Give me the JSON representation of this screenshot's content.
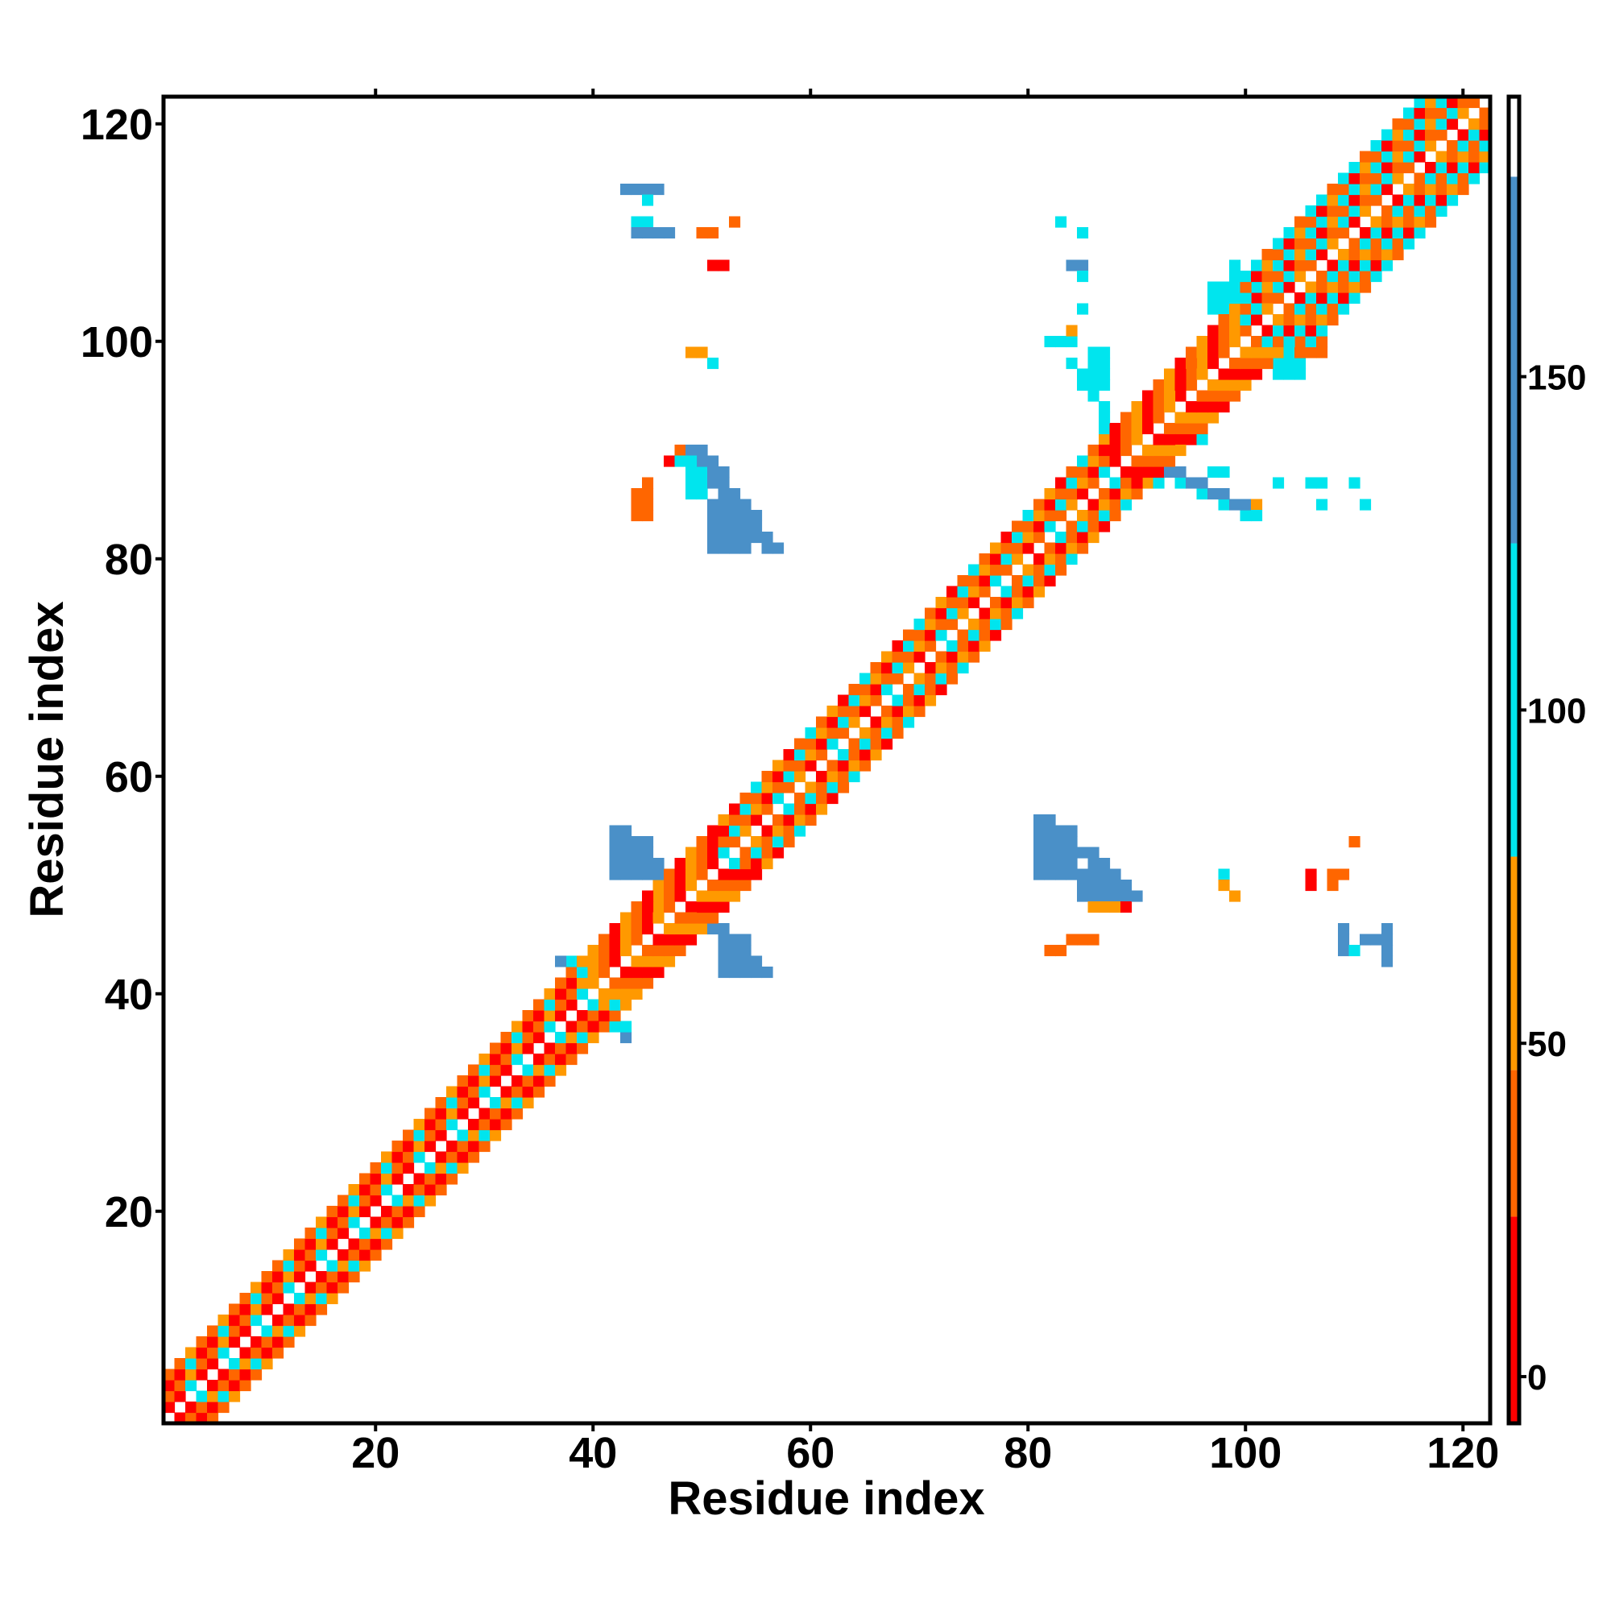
{
  "chart_data": {
    "type": "heatmap",
    "title": "",
    "xlabel": "Residue index",
    "ylabel": "Residue index",
    "xlim": [
      0.5,
      122.5
    ],
    "ylim": [
      0.5,
      122.5
    ],
    "xticks": [
      20,
      40,
      60,
      80,
      100,
      120
    ],
    "yticks": [
      20,
      40,
      60,
      80,
      100,
      120
    ],
    "colorbar": {
      "ticks": [
        0,
        50,
        100,
        150
      ],
      "range": [
        -7,
        192
      ],
      "bands": [
        {
          "from": -7,
          "to": 24,
          "color": "#ff0000"
        },
        {
          "from": 24,
          "to": 46,
          "color": "#ff6600"
        },
        {
          "from": 46,
          "to": 78,
          "color": "#ff9900"
        },
        {
          "from": 78,
          "to": 125,
          "color": "#00e5ee"
        },
        {
          "from": 125,
          "to": 180,
          "color": "#4a90c8"
        },
        {
          "from": 180,
          "to": 192,
          "color": "#ffffff"
        }
      ]
    },
    "classes": {
      "r": {
        "color": "#ff0000",
        "value": 10
      },
      "o": {
        "color": "#ff6600",
        "value": 35
      },
      "y": {
        "color": "#ff9900",
        "value": 60
      },
      "c": {
        "color": "#00e5ee",
        "value": 100
      },
      "b": {
        "color": "#4a90c8",
        "value": 150
      }
    },
    "diagonal_bands": [
      {
        "from": 1,
        "to": 40,
        "pattern": [
          "y",
          "r",
          "o",
          "c",
          "o",
          "r"
        ],
        "width": 4
      },
      {
        "from": 40,
        "to": 52,
        "pattern": [
          "r",
          "o",
          "y"
        ],
        "width": 4
      },
      {
        "from": 52,
        "to": 88,
        "pattern": [
          "o",
          "y",
          "c",
          "r",
          "o"
        ],
        "width": 4
      },
      {
        "from": 88,
        "to": 100,
        "pattern": [
          "y",
          "o",
          "r"
        ],
        "width": 4
      },
      {
        "from": 100,
        "to": 122,
        "pattern": [
          "o",
          "r",
          "c",
          "y",
          "c",
          "o"
        ],
        "width": 6
      }
    ],
    "blocks": [
      {
        "x": [
          42,
          46
        ],
        "y": [
          51,
          55
        ],
        "cls": "b"
      },
      {
        "x": [
          46,
          50
        ],
        "y": [
          48,
          52
        ],
        "cls": "b"
      },
      {
        "x": [
          50,
          52
        ],
        "y": [
          46,
          50
        ],
        "cls": "c"
      },
      {
        "x": [
          52,
          55
        ],
        "y": [
          42,
          46
        ],
        "cls": "b"
      },
      {
        "x": [
          38,
          41
        ],
        "y": [
          38,
          44
        ],
        "cls": "c"
      },
      {
        "x": [
          37,
          38
        ],
        "y": [
          43,
          44
        ],
        "cls": "b"
      },
      {
        "x": [
          43,
          44
        ],
        "y": [
          36,
          37
        ],
        "cls": "b"
      },
      {
        "x": [
          87,
          89
        ],
        "y": [
          91,
          93
        ],
        "cls": "c"
      },
      {
        "x": [
          91,
          93
        ],
        "y": [
          87,
          89
        ],
        "cls": "c"
      },
      {
        "x": [
          86,
          88
        ],
        "y": [
          96,
          100
        ],
        "cls": "c"
      },
      {
        "x": [
          94,
          97
        ],
        "y": [
          91,
          93
        ],
        "cls": "c"
      },
      {
        "x": [
          49,
          51
        ],
        "y": [
          86,
          89
        ],
        "cls": "c"
      },
      {
        "x": [
          51,
          55
        ],
        "y": [
          81,
          86
        ],
        "cls": "b"
      },
      {
        "x": [
          81,
          85
        ],
        "y": [
          51,
          56
        ],
        "cls": "b"
      },
      {
        "x": [
          85,
          89
        ],
        "y": [
          49,
          52
        ],
        "cls": "b"
      },
      {
        "x": [
          89,
          90
        ],
        "y": [
          49,
          50
        ],
        "cls": "c"
      },
      {
        "x": [
          43,
          47
        ],
        "y": [
          114,
          115
        ],
        "cls": "b"
      },
      {
        "x": [
          44,
          46
        ],
        "y": [
          111,
          112
        ],
        "cls": "c"
      },
      {
        "x": [
          44,
          48
        ],
        "y": [
          110,
          111
        ],
        "cls": "b"
      },
      {
        "x": [
          45,
          46
        ],
        "y": [
          113,
          114
        ],
        "cls": "c"
      },
      {
        "x": [
          50,
          52
        ],
        "y": [
          110,
          111
        ],
        "cls": "o"
      },
      {
        "x": [
          53,
          54
        ],
        "y": [
          111,
          112
        ],
        "cls": "o"
      },
      {
        "x": [
          51,
          53
        ],
        "y": [
          107,
          108
        ],
        "cls": "r"
      },
      {
        "x": [
          49,
          51
        ],
        "y": [
          99,
          100
        ],
        "cls": "y"
      },
      {
        "x": [
          51,
          52
        ],
        "y": [
          98,
          99
        ],
        "cls": "c"
      },
      {
        "x": [
          44,
          46
        ],
        "y": [
          84,
          87
        ],
        "cls": "o"
      },
      {
        "x": [
          45,
          46
        ],
        "y": [
          87,
          88
        ],
        "cls": "o"
      },
      {
        "x": [
          47,
          48
        ],
        "y": [
          89,
          90
        ],
        "cls": "r"
      },
      {
        "x": [
          48,
          49
        ],
        "y": [
          90,
          91
        ],
        "cls": "o"
      },
      {
        "x": [
          82,
          84
        ],
        "y": [
          44,
          45
        ],
        "cls": "o"
      },
      {
        "x": [
          84,
          87
        ],
        "y": [
          45,
          46
        ],
        "cls": "o"
      },
      {
        "x": [
          86,
          89
        ],
        "y": [
          48,
          49
        ],
        "cls": "y"
      },
      {
        "x": [
          89,
          90
        ],
        "y": [
          48,
          49
        ],
        "cls": "r"
      },
      {
        "x": [
          90,
          91
        ],
        "y": [
          49,
          50
        ],
        "cls": "o"
      },
      {
        "x": [
          98,
          99
        ],
        "y": [
          51,
          52
        ],
        "cls": "c"
      },
      {
        "x": [
          98,
          99
        ],
        "y": [
          50,
          51
        ],
        "cls": "y"
      },
      {
        "x": [
          99,
          100
        ],
        "y": [
          49,
          50
        ],
        "cls": "y"
      },
      {
        "x": [
          106,
          107
        ],
        "y": [
          50,
          52
        ],
        "cls": "r"
      },
      {
        "x": [
          108,
          110
        ],
        "y": [
          51,
          52
        ],
        "cls": "o"
      },
      {
        "x": [
          108,
          109
        ],
        "y": [
          50,
          51
        ],
        "cls": "o"
      },
      {
        "x": [
          110,
          111
        ],
        "y": [
          54,
          55
        ],
        "cls": "o"
      },
      {
        "x": [
          109,
          110
        ],
        "y": [
          44,
          47
        ],
        "cls": "b"
      },
      {
        "x": [
          110,
          111
        ],
        "y": [
          44,
          45
        ],
        "cls": "c"
      },
      {
        "x": [
          111,
          112
        ],
        "y": [
          45,
          46
        ],
        "cls": "b"
      },
      {
        "x": [
          113,
          114
        ],
        "y": [
          43,
          47
        ],
        "cls": "b"
      },
      {
        "x": [
          112,
          113
        ],
        "y": [
          45,
          46
        ],
        "cls": "b"
      },
      {
        "x": [
          83,
          84
        ],
        "y": [
          111,
          112
        ],
        "cls": "c"
      },
      {
        "x": [
          85,
          86
        ],
        "y": [
          110,
          111
        ],
        "cls": "c"
      },
      {
        "x": [
          84,
          86
        ],
        "y": [
          107,
          108
        ],
        "cls": "b"
      },
      {
        "x": [
          85,
          86
        ],
        "y": [
          106,
          107
        ],
        "cls": "c"
      },
      {
        "x": [
          85,
          86
        ],
        "y": [
          103,
          104
        ],
        "cls": "c"
      },
      {
        "x": [
          82,
          85
        ],
        "y": [
          100,
          101
        ],
        "cls": "c"
      },
      {
        "x": [
          84,
          85
        ],
        "y": [
          101,
          102
        ],
        "cls": "y"
      },
      {
        "x": [
          97,
          99
        ],
        "y": [
          88,
          89
        ],
        "cls": "c"
      },
      {
        "x": [
          100,
          101
        ],
        "y": [
          84,
          86
        ],
        "cls": "c"
      },
      {
        "x": [
          101,
          102
        ],
        "y": [
          85,
          86
        ],
        "cls": "y"
      },
      {
        "x": [
          103,
          104
        ],
        "y": [
          87,
          88
        ],
        "cls": "c"
      },
      {
        "x": [
          106,
          108
        ],
        "y": [
          87,
          88
        ],
        "cls": "c"
      },
      {
        "x": [
          107,
          108
        ],
        "y": [
          85,
          86
        ],
        "cls": "c"
      },
      {
        "x": [
          110,
          111
        ],
        "y": [
          87,
          88
        ],
        "cls": "c"
      },
      {
        "x": [
          111,
          112
        ],
        "y": [
          85,
          86
        ],
        "cls": "c"
      },
      {
        "x": [
          103,
          106
        ],
        "y": [
          97,
          100
        ],
        "cls": "c"
      },
      {
        "x": [
          97,
          100
        ],
        "y": [
          103,
          106
        ],
        "cls": "c"
      },
      {
        "x": [
          99,
          100
        ],
        "y": [
          106,
          108
        ],
        "cls": "c"
      },
      {
        "x": [
          105,
          108
        ],
        "y": [
          99,
          101
        ],
        "cls": "o"
      },
      {
        "x": [
          101,
          103
        ],
        "y": [
          104,
          106
        ],
        "cls": "o"
      }
    ],
    "diagonal_bars": [
      {
        "start": [
          49,
          90
        ],
        "end": [
          56,
          81
        ],
        "cls": "b",
        "thickness": 2
      },
      {
        "start": [
          48,
          89
        ],
        "end": [
          50,
          88
        ],
        "cls": "c",
        "thickness": 1
      },
      {
        "start": [
          81,
          56
        ],
        "end": [
          89,
          49
        ],
        "cls": "b",
        "thickness": 2
      },
      {
        "start": [
          42,
          55
        ],
        "end": [
          55,
          42
        ],
        "cls": "b",
        "thickness": 2
      },
      {
        "start": [
          38,
          38
        ],
        "end": [
          43,
          37
        ],
        "cls": "c",
        "thickness": 1
      },
      {
        "start": [
          84,
          98
        ],
        "end": [
          88,
          92
        ],
        "cls": "c",
        "thickness": 1
      },
      {
        "start": [
          92,
          88
        ],
        "end": [
          101,
          84
        ],
        "cls": "c",
        "thickness": 1
      },
      {
        "start": [
          93,
          88
        ],
        "end": [
          100,
          85
        ],
        "cls": "b",
        "thickness": 1
      },
      {
        "start": [
          93,
          93
        ],
        "end": [
          96,
          98
        ],
        "cls": "c",
        "thickness": 1
      }
    ]
  }
}
